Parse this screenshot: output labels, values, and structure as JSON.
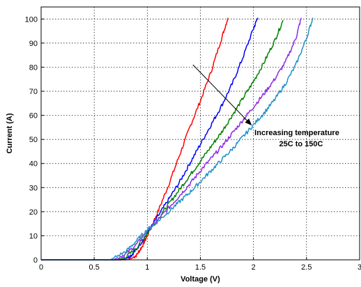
{
  "chart_data": {
    "type": "line",
    "xlabel": "Voltage (V)",
    "ylabel": "Current (A)",
    "xlim": [
      0,
      3
    ],
    "ylim": [
      0,
      105
    ],
    "xticks": [
      0,
      0.5,
      1,
      1.5,
      2,
      2.5,
      3
    ],
    "yticks": [
      0,
      10,
      20,
      30,
      40,
      50,
      60,
      70,
      80,
      90,
      100
    ],
    "grid": true,
    "annotation": {
      "lines": [
        "Increasing temperature",
        "25C to 150C"
      ],
      "arrow_from": [
        1.43,
        81
      ],
      "arrow_to": [
        1.98,
        56
      ]
    },
    "series": [
      {
        "color": "#ff0000",
        "points": [
          [
            0,
            0
          ],
          [
            0.6,
            0
          ],
          [
            0.8,
            0
          ],
          [
            0.85,
            0.5
          ],
          [
            0.9,
            2
          ],
          [
            0.95,
            5.5
          ],
          [
            1.0,
            10
          ],
          [
            1.1,
            20
          ],
          [
            1.2,
            31
          ],
          [
            1.3,
            43
          ],
          [
            1.4,
            55
          ],
          [
            1.5,
            66
          ],
          [
            1.6,
            78
          ],
          [
            1.7,
            92
          ],
          [
            1.76,
            100.5
          ]
        ]
      },
      {
        "color": "#0000ff",
        "points": [
          [
            0,
            0
          ],
          [
            0.6,
            0
          ],
          [
            0.75,
            0
          ],
          [
            0.8,
            0.5
          ],
          [
            0.85,
            2
          ],
          [
            0.9,
            4.5
          ],
          [
            1.0,
            11
          ],
          [
            1.1,
            18
          ],
          [
            1.2,
            25
          ],
          [
            1.3,
            32
          ],
          [
            1.4,
            40
          ],
          [
            1.5,
            48
          ],
          [
            1.6,
            56
          ],
          [
            1.7,
            64
          ],
          [
            1.8,
            73
          ],
          [
            1.9,
            84
          ],
          [
            2.0,
            96
          ],
          [
            2.04,
            100.5
          ]
        ]
      },
      {
        "color": "#008000",
        "points": [
          [
            0,
            0
          ],
          [
            0.6,
            0
          ],
          [
            0.72,
            0
          ],
          [
            0.8,
            1.2
          ],
          [
            0.9,
            5
          ],
          [
            1.0,
            11
          ],
          [
            1.1,
            17
          ],
          [
            1.2,
            23
          ],
          [
            1.3,
            29
          ],
          [
            1.4,
            35
          ],
          [
            1.5,
            41
          ],
          [
            1.6,
            47
          ],
          [
            1.7,
            53
          ],
          [
            1.8,
            60
          ],
          [
            1.9,
            67
          ],
          [
            2.0,
            74
          ],
          [
            2.1,
            82
          ],
          [
            2.2,
            91
          ],
          [
            2.28,
            99.5
          ]
        ]
      },
      {
        "color": "#8a2be2",
        "points": [
          [
            0,
            0
          ],
          [
            0.6,
            0
          ],
          [
            0.68,
            0
          ],
          [
            0.8,
            2.5
          ],
          [
            0.9,
            6.5
          ],
          [
            1.0,
            12
          ],
          [
            1.1,
            16.5
          ],
          [
            1.2,
            21.5
          ],
          [
            1.3,
            26.5
          ],
          [
            1.4,
            31.5
          ],
          [
            1.5,
            37
          ],
          [
            1.6,
            42
          ],
          [
            1.7,
            47
          ],
          [
            1.8,
            52.5
          ],
          [
            1.9,
            58
          ],
          [
            2.0,
            63.5
          ],
          [
            2.1,
            69
          ],
          [
            2.2,
            75
          ],
          [
            2.3,
            82
          ],
          [
            2.4,
            92
          ],
          [
            2.45,
            100.5
          ]
        ]
      },
      {
        "color": "#1e90c8",
        "points": [
          [
            0,
            0
          ],
          [
            0.6,
            0
          ],
          [
            0.65,
            0
          ],
          [
            0.8,
            3.5
          ],
          [
            0.9,
            8
          ],
          [
            1.0,
            12.5
          ],
          [
            1.1,
            16
          ],
          [
            1.2,
            20
          ],
          [
            1.3,
            24
          ],
          [
            1.4,
            28
          ],
          [
            1.5,
            32.5
          ],
          [
            1.6,
            37
          ],
          [
            1.7,
            41.5
          ],
          [
            1.8,
            46
          ],
          [
            1.9,
            51
          ],
          [
            2.0,
            56
          ],
          [
            2.1,
            61
          ],
          [
            2.2,
            66.5
          ],
          [
            2.3,
            73
          ],
          [
            2.4,
            81
          ],
          [
            2.5,
            92
          ],
          [
            2.56,
            100.5
          ]
        ]
      }
    ]
  }
}
